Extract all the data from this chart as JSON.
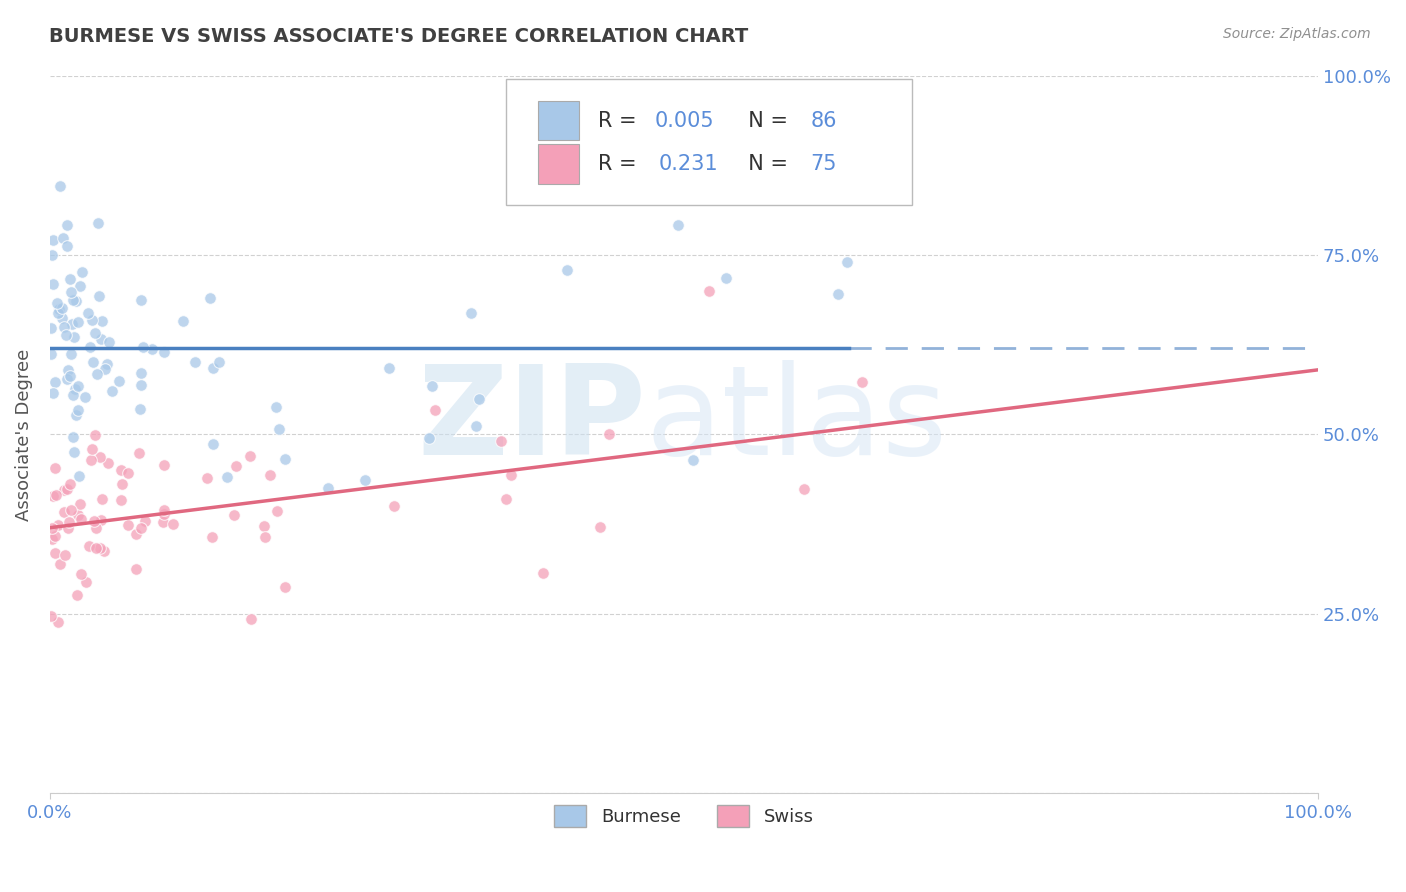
{
  "title": "BURMESE VS SWISS ASSOCIATE'S DEGREE CORRELATION CHART",
  "source_text": "Source: ZipAtlas.com",
  "ylabel": "Associate's Degree",
  "legend_R1": "0.005",
  "legend_N1": "86",
  "legend_R2": "0.231",
  "legend_N2": "75",
  "burmese_color": "#a8c8e8",
  "swiss_color": "#f4a0b8",
  "burmese_line_color": "#4a80c0",
  "swiss_line_color": "#e06880",
  "grid_color": "#cccccc",
  "background_color": "#ffffff",
  "title_color": "#404040",
  "source_color": "#909090",
  "axis_label_color": "#5b8dd9",
  "tick_color": "#5b8dd9",
  "legend_text_color": "#5b8dd9",
  "legend_label_color": "#333333",
  "watermark_zip_color": "#c8ddf0",
  "watermark_atlas_color": "#d0dff0",
  "right_ytick_labels": [
    "",
    "25.0%",
    "50.0%",
    "75.0%",
    "100.0%"
  ],
  "right_ytick_positions": [
    0.0,
    0.25,
    0.5,
    0.75,
    1.0
  ],
  "x_tick_positions": [
    0.0,
    1.0
  ],
  "x_tick_labels": [
    "0.0%",
    "100.0%"
  ],
  "burmese_label": "Burmese",
  "swiss_label": "Swiss"
}
